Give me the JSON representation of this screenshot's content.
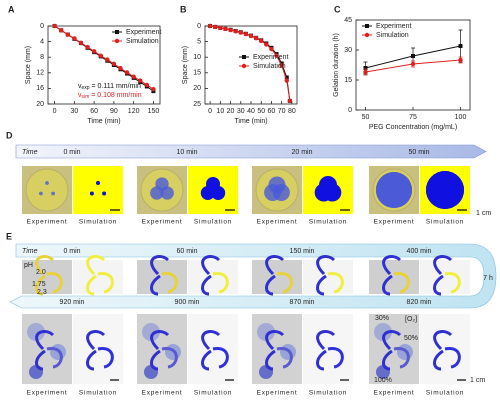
{
  "chart_data": [
    {
      "type": "line",
      "label": "A",
      "xlabel": "Time (min)",
      "ylabel": "Space (mm)",
      "x": [
        0,
        10,
        20,
        30,
        40,
        50,
        60,
        70,
        80,
        90,
        100,
        110,
        120,
        130,
        140,
        150
      ],
      "xlim": [
        -10,
        160
      ],
      "xticks": [
        0,
        30,
        60,
        90,
        120,
        150
      ],
      "ylim": [
        20,
        0
      ],
      "yticks": [
        0,
        4,
        8,
        12,
        16,
        20
      ],
      "legend": "upper right",
      "series": [
        {
          "name": "Experiment",
          "color": "#111111",
          "marker": "square",
          "values": [
            0,
            1.1,
            2.2,
            3.3,
            4.4,
            5.6,
            6.7,
            7.8,
            8.9,
            10.0,
            11.1,
            12.2,
            13.3,
            14.4,
            15.5,
            16.7
          ]
        },
        {
          "name": "Simulation",
          "color": "#e0201f",
          "marker": "circle",
          "values": [
            0,
            1.1,
            2.2,
            3.2,
            4.3,
            5.4,
            6.5,
            7.6,
            8.6,
            9.7,
            10.8,
            11.9,
            13.0,
            14.0,
            15.1,
            16.2
          ]
        }
      ],
      "annotations": [
        {
          "symbol": "v",
          "sub": "exp",
          "text": " = 0.111 mm/min",
          "color": "#111111"
        },
        {
          "symbol": "v",
          "sub": "sim",
          "text": " = 0.108 mm/min",
          "color": "#e0201f"
        }
      ]
    },
    {
      "type": "line",
      "label": "B",
      "ylabel": "Space (mm)",
      "xlabel": "Time (min)",
      "x": [
        0,
        5,
        10,
        15,
        20,
        25,
        30,
        35,
        40,
        45,
        50,
        55,
        60,
        65,
        70,
        75,
        78
      ],
      "xlim": [
        -5,
        85
      ],
      "xticks": [
        0,
        10,
        20,
        30,
        40,
        50,
        60,
        70,
        80
      ],
      "ylim": [
        25,
        0
      ],
      "yticks": [
        0,
        5,
        10,
        15,
        20,
        25
      ],
      "legend": "center right",
      "series": [
        {
          "name": "Experiment",
          "color": "#111111",
          "marker": "square",
          "values": [
            0,
            0.3,
            0.6,
            0.9,
            1.2,
            1.6,
            2.0,
            2.5,
            3.1,
            3.8,
            4.6,
            5.6,
            7.0,
            9.0,
            12,
            16.5,
            24
          ]
        },
        {
          "name": "Simulation",
          "color": "#e0201f",
          "marker": "circle",
          "values": [
            0,
            0.3,
            0.6,
            0.9,
            1.3,
            1.7,
            2.1,
            2.6,
            3.2,
            3.9,
            4.8,
            5.9,
            7.4,
            9.5,
            12.7,
            17.5,
            24
          ]
        }
      ]
    },
    {
      "type": "line",
      "label": "C",
      "xlabel": "PEG Concentration (mg/mL)",
      "ylabel": "Gelation duration (h)",
      "x": [
        50,
        75,
        100
      ],
      "xlim": [
        45,
        105
      ],
      "xticks": [
        50,
        75,
        100
      ],
      "ylim": [
        0,
        45
      ],
      "yticks": [
        0,
        15,
        30,
        45
      ],
      "legend": "upper left",
      "series": [
        {
          "name": "Experiment",
          "color": "#111111",
          "marker": "square",
          "values": [
            21,
            27,
            32
          ],
          "errors": [
            3,
            4,
            8
          ]
        },
        {
          "name": "Simulation",
          "color": "#e0201f",
          "marker": "circle",
          "values": [
            19,
            23,
            25
          ],
          "errors": [
            1.5,
            1.5,
            1.5
          ]
        }
      ]
    }
  ],
  "panel_d": {
    "label": "D",
    "time_label": "Time",
    "scale_bar": "1 cm",
    "frames": [
      {
        "time": "0 min",
        "experiment": "Experiment",
        "simulation": "Simulation"
      },
      {
        "time": "10 min",
        "experiment": "Experiment",
        "simulation": "Simulation"
      },
      {
        "time": "20 min",
        "experiment": "Experiment",
        "simulation": "Simulation"
      },
      {
        "time": "50 min",
        "experiment": "Experiment",
        "simulation": "Simulation"
      }
    ]
  },
  "panel_e": {
    "label": "E",
    "time_label": "Time",
    "turn_label": "7 h",
    "scale_bar": "1 cm",
    "ph_label": "pH",
    "ph_values": [
      "1.75",
      "2.0",
      "2.3"
    ],
    "o2_labels": [
      "30%",
      "[O₂]",
      "50%",
      "100%"
    ],
    "top_frames": [
      {
        "time": "0 min"
      },
      {
        "time": "60 min"
      },
      {
        "time": "150 min"
      },
      {
        "time": "400 min"
      }
    ],
    "bottom_frames": [
      {
        "time": "920 min",
        "experiment": "Experiment",
        "simulation": "Simulation"
      },
      {
        "time": "900 min",
        "experiment": "Experiment",
        "simulation": "Simulation"
      },
      {
        "time": "870 min",
        "experiment": "Experiment",
        "simulation": "Simulation"
      },
      {
        "time": "820 min",
        "experiment": "Experiment",
        "simulation": "Simulation"
      }
    ]
  }
}
